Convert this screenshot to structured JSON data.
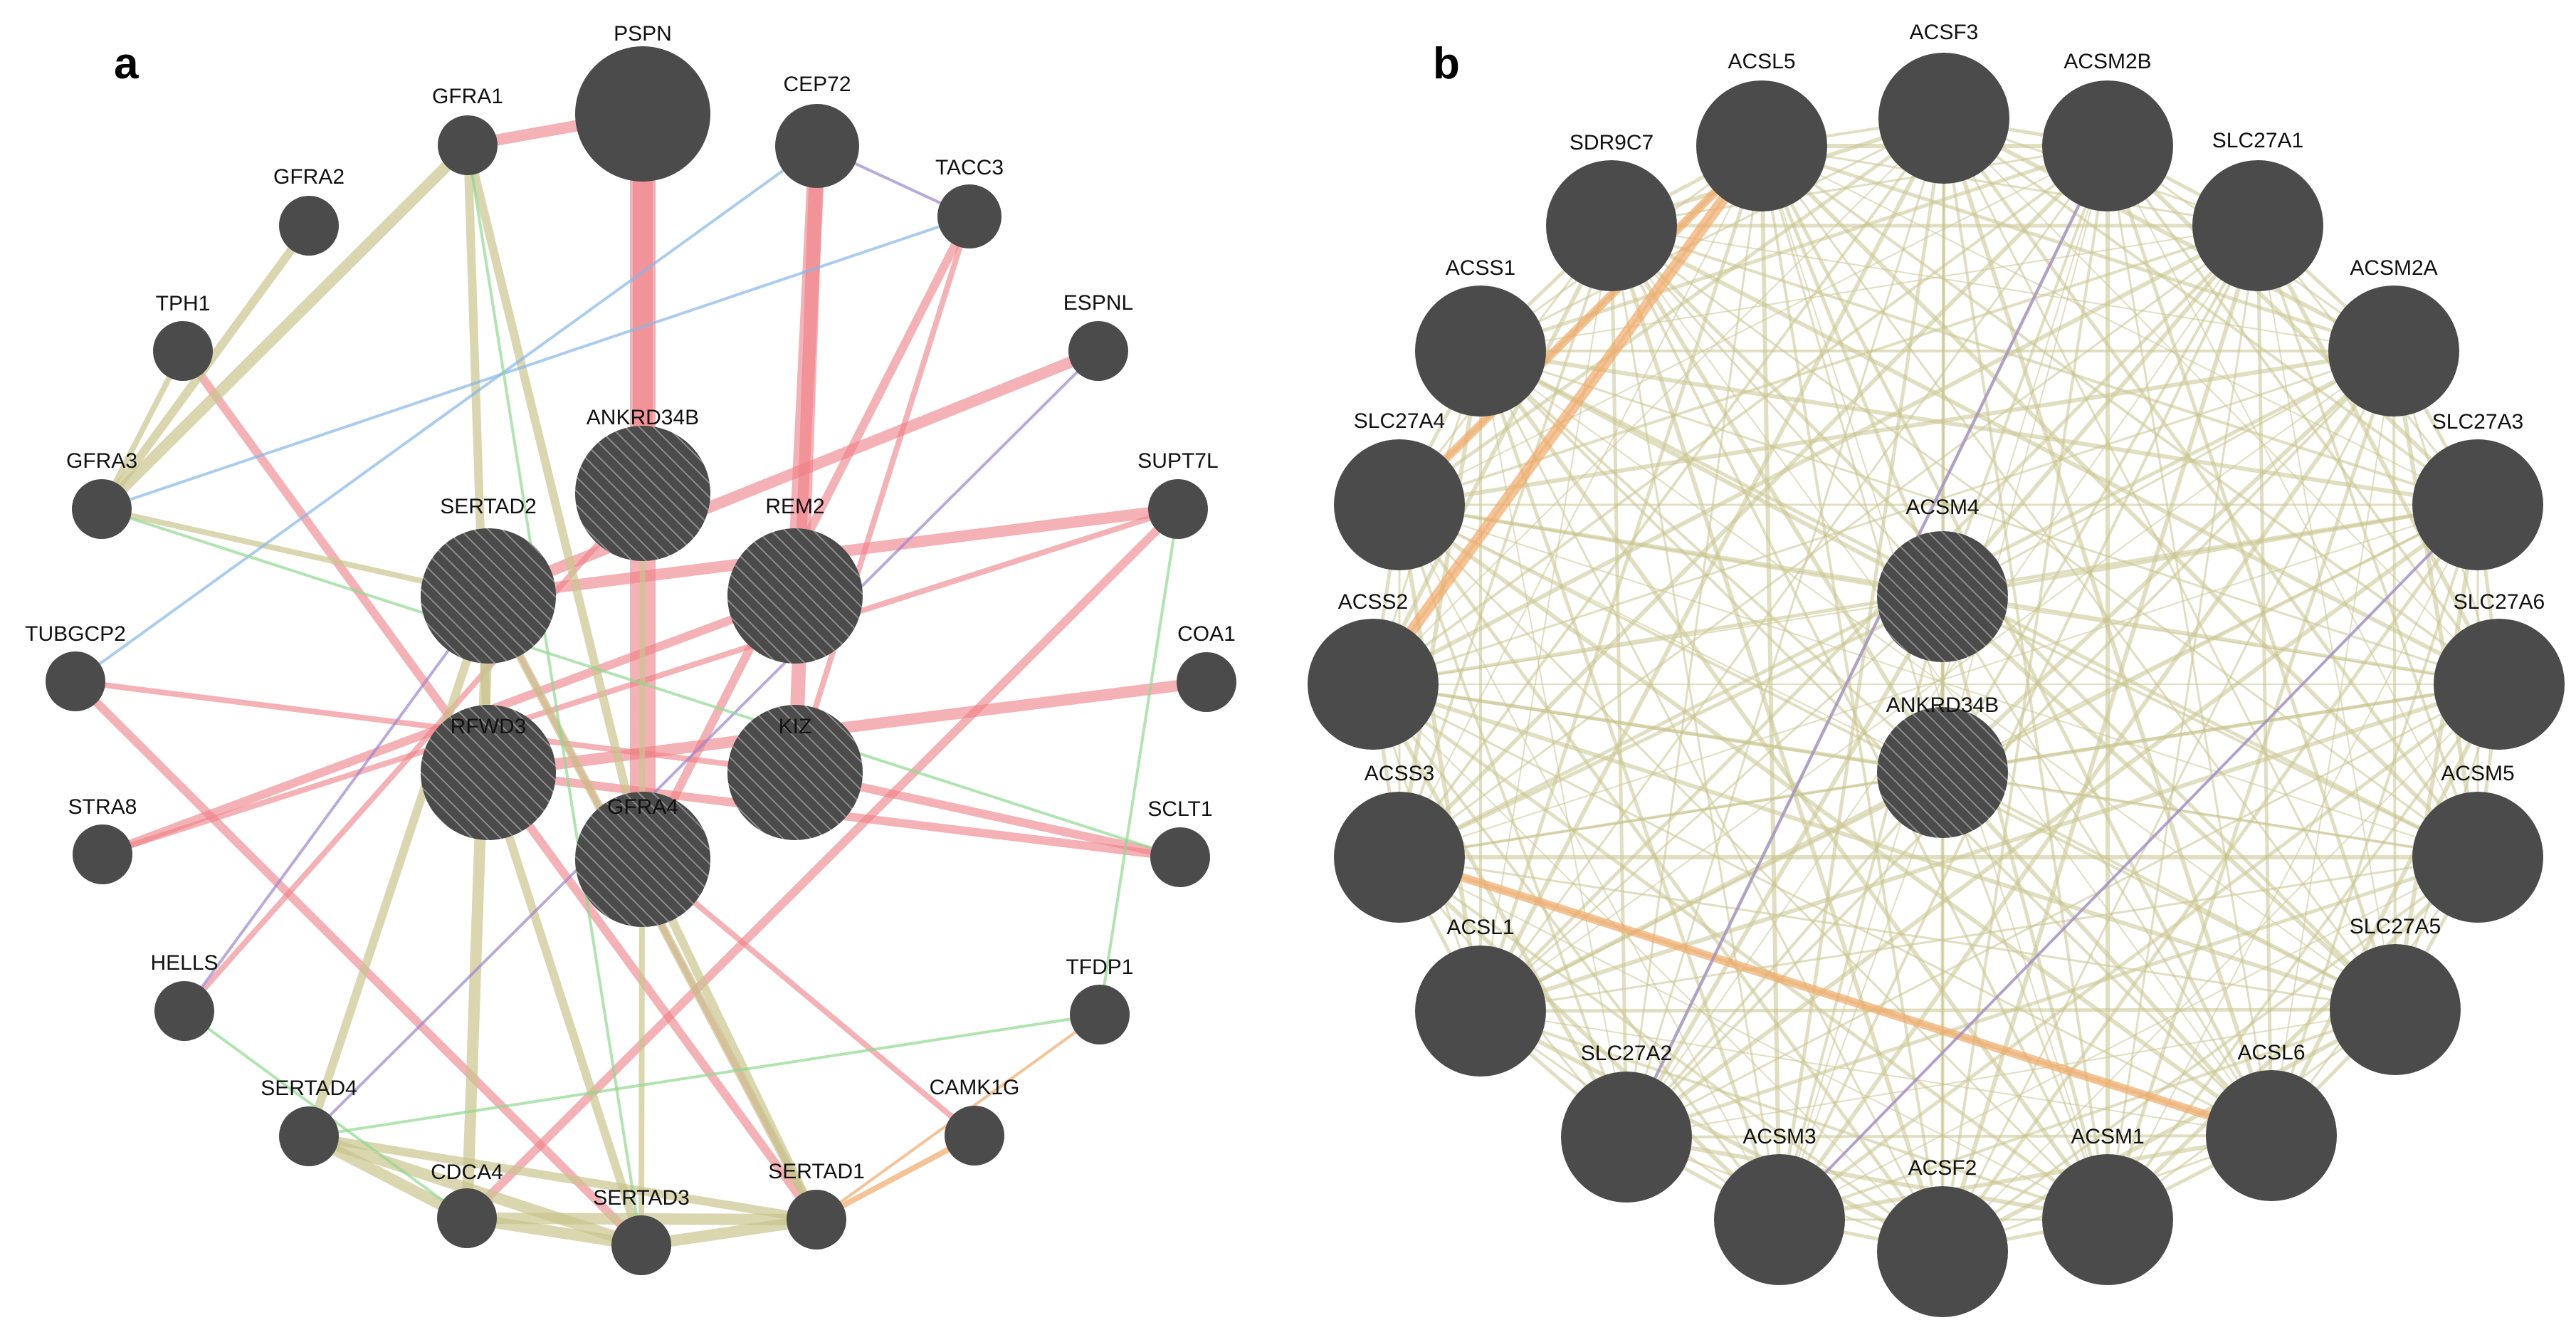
{
  "colors": {
    "node": "#4b4b4b",
    "physical": "#ee7f86",
    "coexpression": "#c9c58e",
    "colocalization": "#9b86cf",
    "predicted": "#f2a96a",
    "genetic": "#8fd98f",
    "pathway": "#86b7e8",
    "background": "#ffffff"
  },
  "panels": [
    {
      "label": "a",
      "query_nodes": [
        {
          "id": "PSPN",
          "label": "PSPN",
          "hatched": false
        },
        {
          "id": "ANKRD34B",
          "label": "ANKRD34B",
          "hatched": true
        },
        {
          "id": "SERTAD2",
          "label": "SERTAD2",
          "hatched": true
        },
        {
          "id": "REM2",
          "label": "REM2",
          "hatched": true
        },
        {
          "id": "RFWD3",
          "label": "RFWD3",
          "hatched": true
        },
        {
          "id": "KIZ",
          "label": "KIZ",
          "hatched": true
        },
        {
          "id": "GFRA4",
          "label": "GFRA4",
          "hatched": true
        }
      ],
      "ring_nodes": [
        {
          "id": "CEP72",
          "label": "CEP72"
        },
        {
          "id": "TACC3",
          "label": "TACC3"
        },
        {
          "id": "ESPNL",
          "label": "ESPNL"
        },
        {
          "id": "SUPT7L",
          "label": "SUPT7L"
        },
        {
          "id": "COA1",
          "label": "COA1"
        },
        {
          "id": "SCLT1",
          "label": "SCLT1"
        },
        {
          "id": "TFDP1",
          "label": "TFDP1"
        },
        {
          "id": "CAMK1G",
          "label": "CAMK1G"
        },
        {
          "id": "SERTAD1",
          "label": "SERTAD1"
        },
        {
          "id": "SERTAD3",
          "label": "SERTAD3"
        },
        {
          "id": "CDCA4",
          "label": "CDCA4"
        },
        {
          "id": "SERTAD4",
          "label": "SERTAD4"
        },
        {
          "id": "HELLS",
          "label": "HELLS"
        },
        {
          "id": "STRA8",
          "label": "STRA8"
        },
        {
          "id": "TUBGCP2",
          "label": "TUBGCP2"
        },
        {
          "id": "GFRA3",
          "label": "GFRA3"
        },
        {
          "id": "TPH1",
          "label": "TPH1"
        },
        {
          "id": "GFRA2",
          "label": "GFRA2"
        },
        {
          "id": "GFRA1",
          "label": "GFRA1"
        }
      ],
      "edges": [
        {
          "source": "PSPN",
          "target": "GFRA4",
          "type": "physical",
          "weight": 9
        },
        {
          "source": "PSPN",
          "target": "ANKRD34B",
          "type": "physical",
          "weight": 7
        },
        {
          "source": "PSPN",
          "target": "GFRA1",
          "type": "physical",
          "weight": 4
        },
        {
          "source": "CEP72",
          "target": "REM2",
          "type": "physical",
          "weight": 6
        },
        {
          "source": "CEP72",
          "target": "KIZ",
          "type": "physical",
          "weight": 5
        },
        {
          "source": "TACC3",
          "target": "GFRA4",
          "type": "physical",
          "weight": 3
        },
        {
          "source": "TACC3",
          "target": "KIZ",
          "type": "physical",
          "weight": 2
        },
        {
          "source": "ESPNL",
          "target": "SERTAD2",
          "type": "physical",
          "weight": 4
        },
        {
          "source": "SUPT7L",
          "target": "SERTAD2",
          "type": "physical",
          "weight": 4
        },
        {
          "source": "SUPT7L",
          "target": "CDCA4",
          "type": "physical",
          "weight": 3
        },
        {
          "source": "SUPT7L",
          "target": "STRA8",
          "type": "physical",
          "weight": 2
        },
        {
          "source": "COA1",
          "target": "RFWD3",
          "type": "physical",
          "weight": 4
        },
        {
          "source": "SCLT1",
          "target": "RFWD3",
          "type": "physical",
          "weight": 3
        },
        {
          "source": "SCLT1",
          "target": "KIZ",
          "type": "physical",
          "weight": 3
        },
        {
          "source": "TUBGCP2",
          "target": "SERTAD3",
          "type": "physical",
          "weight": 3
        },
        {
          "source": "TUBGCP2",
          "target": "KIZ",
          "type": "physical",
          "weight": 2
        },
        {
          "source": "STRA8",
          "target": "REM2",
          "type": "physical",
          "weight": 3
        },
        {
          "source": "TPH1",
          "target": "SERTAD1",
          "type": "physical",
          "weight": 3
        },
        {
          "source": "HELLS",
          "target": "ANKRD34B",
          "type": "physical",
          "weight": 2
        },
        {
          "source": "CAMK1G",
          "target": "GFRA4",
          "type": "physical",
          "weight": 2
        },
        {
          "source": "SERTAD1",
          "target": "SERTAD2",
          "type": "physical",
          "weight": 2
        },
        {
          "source": "GFRA1",
          "target": "GFRA3",
          "type": "coexpression",
          "weight": 4
        },
        {
          "source": "GFRA1",
          "target": "GFRA4",
          "type": "coexpression",
          "weight": 3
        },
        {
          "source": "GFRA1",
          "target": "RFWD3",
          "type": "coexpression",
          "weight": 3
        },
        {
          "source": "GFRA2",
          "target": "GFRA3",
          "type": "coexpression",
          "weight": 3
        },
        {
          "source": "GFRA3",
          "target": "SERTAD2",
          "type": "coexpression",
          "weight": 2
        },
        {
          "source": "TPH1",
          "target": "GFRA3",
          "type": "coexpression",
          "weight": 2
        },
        {
          "source": "SERTAD2",
          "target": "CDCA4",
          "type": "coexpression",
          "weight": 4
        },
        {
          "source": "SERTAD2",
          "target": "SERTAD4",
          "type": "coexpression",
          "weight": 3
        },
        {
          "source": "SERTAD2",
          "target": "SERTAD1",
          "type": "coexpression",
          "weight": 3
        },
        {
          "source": "SERTAD4",
          "target": "CDCA4",
          "type": "coexpression",
          "weight": 4
        },
        {
          "source": "SERTAD4",
          "target": "SERTAD3",
          "type": "coexpression",
          "weight": 4
        },
        {
          "source": "SERTAD4",
          "target": "SERTAD1",
          "type": "coexpression",
          "weight": 3
        },
        {
          "source": "CDCA4",
          "target": "SERTAD3",
          "type": "coexpression",
          "weight": 4
        },
        {
          "source": "CDCA4",
          "target": "SERTAD1",
          "type": "coexpression",
          "weight": 4
        },
        {
          "source": "SERTAD3",
          "target": "SERTAD1",
          "type": "coexpression",
          "weight": 4
        },
        {
          "source": "RFWD3",
          "target": "SERTAD3",
          "type": "coexpression",
          "weight": 3
        },
        {
          "source": "GFRA4",
          "target": "SERTAD1",
          "type": "coexpression",
          "weight": 3
        },
        {
          "source": "ANKRD34B",
          "target": "SERTAD3",
          "type": "coexpression",
          "weight": 2
        },
        {
          "source": "CAMK1G",
          "target": "SERTAD1",
          "type": "predicted",
          "weight": 2
        },
        {
          "source": "TFDP1",
          "target": "SERTAD1",
          "type": "predicted",
          "weight": 1
        },
        {
          "source": "TACC3",
          "target": "GFRA3",
          "type": "pathway",
          "weight": 1
        },
        {
          "source": "CEP72",
          "target": "TUBGCP2",
          "type": "pathway",
          "weight": 1
        },
        {
          "source": "CEP72",
          "target": "TACC3",
          "type": "colocalization",
          "weight": 1
        },
        {
          "source": "HELLS",
          "target": "SERTAD2",
          "type": "colocalization",
          "weight": 1
        },
        {
          "source": "SERTAD4",
          "target": "ESPNL",
          "type": "colocalization",
          "weight": 1
        },
        {
          "source": "GFRA3",
          "target": "SCLT1",
          "type": "genetic",
          "weight": 1
        },
        {
          "source": "GFRA1",
          "target": "SERTAD3",
          "type": "genetic",
          "weight": 1
        },
        {
          "source": "HELLS",
          "target": "CDCA4",
          "type": "genetic",
          "weight": 1
        },
        {
          "source": "TFDP1",
          "target": "SERTAD4",
          "type": "genetic",
          "weight": 1
        },
        {
          "source": "SUPT7L",
          "target": "TFDP1",
          "type": "genetic",
          "weight": 1
        }
      ]
    },
    {
      "label": "b",
      "query_nodes": [
        {
          "id": "ACSM4",
          "label": "ACSM4",
          "hatched": true
        },
        {
          "id": "ANKRD34B_b",
          "label": "ANKRD34B",
          "hatched": true
        }
      ],
      "ring_nodes": [
        {
          "id": "ACSF3",
          "label": "ACSF3"
        },
        {
          "id": "ACSM2B",
          "label": "ACSM2B"
        },
        {
          "id": "SLC27A1",
          "label": "SLC27A1"
        },
        {
          "id": "ACSM2A",
          "label": "ACSM2A"
        },
        {
          "id": "SLC27A3",
          "label": "SLC27A3"
        },
        {
          "id": "SLC27A6",
          "label": "SLC27A6"
        },
        {
          "id": "ACSM5",
          "label": "ACSM5"
        },
        {
          "id": "SLC27A5",
          "label": "SLC27A5"
        },
        {
          "id": "ACSL6",
          "label": "ACSL6"
        },
        {
          "id": "ACSM1",
          "label": "ACSM1"
        },
        {
          "id": "ACSF2",
          "label": "ACSF2"
        },
        {
          "id": "ACSM3",
          "label": "ACSM3"
        },
        {
          "id": "SLC27A2",
          "label": "SLC27A2"
        },
        {
          "id": "ACSL1",
          "label": "ACSL1"
        },
        {
          "id": "ACSS3",
          "label": "ACSS3"
        },
        {
          "id": "ACSS2",
          "label": "ACSS2"
        },
        {
          "id": "SLC27A4",
          "label": "SLC27A4"
        },
        {
          "id": "ACSS1",
          "label": "ACSS1"
        },
        {
          "id": "SDR9C7",
          "label": "SDR9C7"
        },
        {
          "id": "ACSL5",
          "label": "ACSL5"
        }
      ],
      "dense_coexpression": true,
      "edges": [
        {
          "source": "ACSL5",
          "target": "ACSS2",
          "type": "predicted",
          "weight": 4
        },
        {
          "source": "ACSL5",
          "target": "SLC27A4",
          "type": "predicted",
          "weight": 3
        },
        {
          "source": "ACSS3",
          "target": "ACSL6",
          "type": "predicted",
          "weight": 3
        },
        {
          "source": "SLC27A2",
          "target": "ACSM2B",
          "type": "colocalization",
          "weight": 1
        },
        {
          "source": "ACSM3",
          "target": "SLC27A3",
          "type": "colocalization",
          "weight": 1
        }
      ]
    }
  ]
}
